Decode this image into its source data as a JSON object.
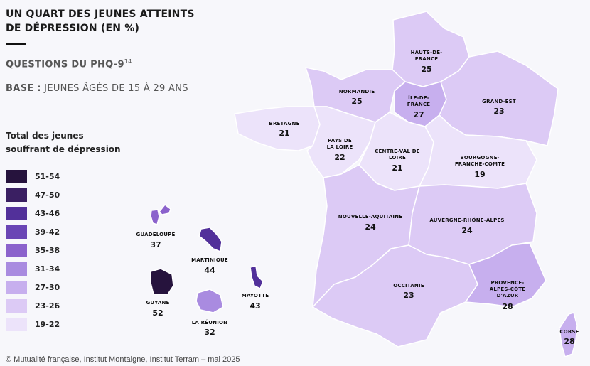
{
  "header": {
    "title_line1": "UN QUART DES JEUNES ATTEINTS",
    "title_line2": "DE DÉPRESSION (EN %)",
    "subtitle": "QUESTIONS DU PHQ-9",
    "subtitle_note": "14",
    "base_label": "BASE :",
    "base_text": " JEUNES ÂGÉS DE 15 À 29 ANS"
  },
  "legend": {
    "title": "Total des jeunes souffrant de dépression",
    "items": [
      {
        "label": "51-54",
        "color": "#26133d"
      },
      {
        "label": "47-50",
        "color": "#3a1f62"
      },
      {
        "label": "43-46",
        "color": "#52309a"
      },
      {
        "label": "39-42",
        "color": "#6a45b5"
      },
      {
        "label": "35-38",
        "color": "#8b62cc"
      },
      {
        "label": "31-34",
        "color": "#a98be0"
      },
      {
        "label": "27-30",
        "color": "#c7afee"
      },
      {
        "label": "23-26",
        "color": "#dccaf5"
      },
      {
        "label": "19-22",
        "color": "#ece3fa"
      }
    ]
  },
  "regions": {
    "hauts_de_france": {
      "name1": "HAUTS-DE-",
      "name2": "FRANCE",
      "value": "25",
      "color": "#dccaf5"
    },
    "normandie": {
      "name1": "NORMANDIE",
      "value": "25",
      "color": "#dccaf5"
    },
    "ile_de_france": {
      "name1": "ÎLE-DE-",
      "name2": "FRANCE",
      "value": "27",
      "color": "#c7afee"
    },
    "grand_est": {
      "name1": "GRAND-EST",
      "value": "23",
      "color": "#dccaf5"
    },
    "bretagne": {
      "name1": "BRETAGNE",
      "value": "21",
      "color": "#ece3fa"
    },
    "pays_de_la_loire": {
      "name1": "PAYS DE",
      "name2": "LA LOIRE",
      "value": "22",
      "color": "#ece3fa"
    },
    "centre_val_de_loire": {
      "name1": "CENTRE-VAL DE",
      "name2": "LOIRE",
      "value": "21",
      "color": "#ece3fa"
    },
    "bourgogne_franche_comte": {
      "name1": "BOURGOGNE-",
      "name2": "FRANCHE-COMTÉ",
      "value": "19",
      "color": "#ece3fa"
    },
    "nouvelle_aquitaine": {
      "name1": "NOUVELLE-AQUITAINE",
      "value": "24",
      "color": "#dccaf5"
    },
    "auvergne_rhone_alpes": {
      "name1": "AUVERGNE-RHÔNE-ALPES",
      "value": "24",
      "color": "#dccaf5"
    },
    "occitanie": {
      "name1": "OCCITANIE",
      "value": "23",
      "color": "#dccaf5"
    },
    "paca": {
      "name1": "PROVENCE-",
      "name2": "ALPES-CÔTE",
      "name3": "D'AZUR",
      "value": "28",
      "color": "#c7afee"
    },
    "corse": {
      "name1": "CORSE",
      "value": "28",
      "color": "#c7afee"
    },
    "guadeloupe": {
      "name1": "GUADELOUPE",
      "value": "37",
      "color": "#8b62cc"
    },
    "martinique": {
      "name1": "MARTINIQUE",
      "value": "44",
      "color": "#52309a"
    },
    "guyane": {
      "name1": "GUYANE",
      "value": "52",
      "color": "#26133d"
    },
    "la_reunion": {
      "name1": "LA RÉUNION",
      "value": "32",
      "color": "#a98be0"
    },
    "mayotte": {
      "name1": "MAYOTTE",
      "value": "43",
      "color": "#52309a"
    }
  },
  "source": "© Mutualité française, Institut Montaigne, Institut Terram – mai 2025"
}
